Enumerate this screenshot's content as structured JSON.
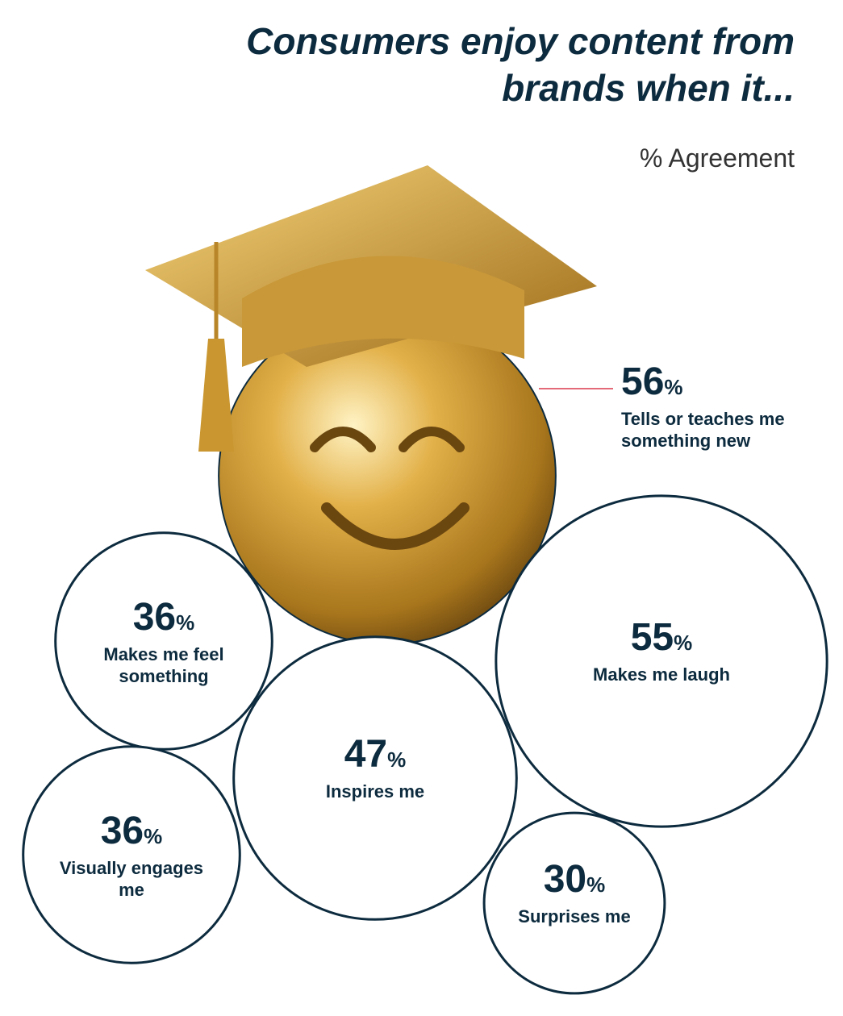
{
  "chart_data": {
    "type": "bubble",
    "title": "Consumers enjoy content from brands when it...",
    "subtitle": "% Agreement",
    "unit": "%",
    "categories": [
      "Tells or teaches me something new",
      "Makes me laugh",
      "Inspires me",
      "Makes me feel something",
      "Visually engages me",
      "Surprises me"
    ],
    "values": [
      56,
      55,
      47,
      36,
      36,
      30
    ],
    "color": "#0d2b3e",
    "highlight_color": "#d4a53a"
  }
}
